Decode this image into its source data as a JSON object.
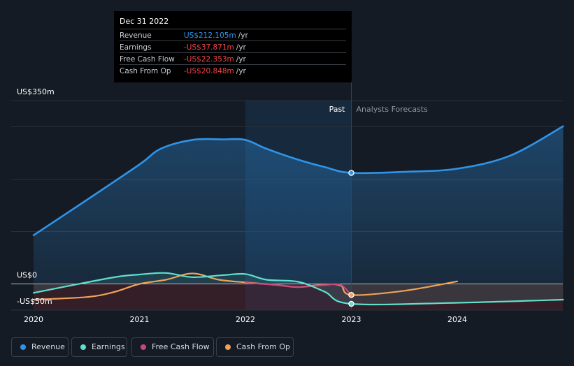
{
  "tooltip": {
    "date": "Dec 31 2022",
    "rows": [
      {
        "label": "Revenue",
        "value": "US$212.105m",
        "unit": "/yr",
        "color": "#2f94e8"
      },
      {
        "label": "Earnings",
        "value": "-US$37.871m",
        "unit": "/yr",
        "color": "#f0454b"
      },
      {
        "label": "Free Cash Flow",
        "value": "-US$22.353m",
        "unit": "/yr",
        "color": "#f0454b"
      },
      {
        "label": "Cash From Op",
        "value": "-US$20.848m",
        "unit": "/yr",
        "color": "#f0454b"
      }
    ]
  },
  "region_labels": {
    "past": "Past",
    "forecast": "Analysts Forecasts"
  },
  "legend": [
    {
      "label": "Revenue",
      "color": "#2f94e8"
    },
    {
      "label": "Earnings",
      "color": "#5fe0cc"
    },
    {
      "label": "Free Cash Flow",
      "color": "#c8477a"
    },
    {
      "label": "Cash From Op",
      "color": "#eea25a"
    }
  ],
  "chart_data": {
    "type": "line",
    "y_tick_labels": [
      "US$350m",
      "US$0",
      "-US$50m"
    ],
    "x_tick_labels": [
      "2020",
      "2021",
      "2022",
      "2023",
      "2024"
    ],
    "ylim": [
      -50,
      350
    ],
    "xlim": [
      2019.8,
      2025.0
    ],
    "past_end": 2023.0,
    "highlight_start": 2022.0,
    "grid": true,
    "series": [
      {
        "name": "Revenue",
        "color": "#2f94e8",
        "x": [
          2020.0,
          2020.5,
          2021.0,
          2021.2,
          2021.5,
          2021.8,
          2022.0,
          2022.2,
          2022.5,
          2022.75,
          2023.0,
          2023.5,
          2024.0,
          2024.5,
          2025.0
        ],
        "y": [
          93,
          160,
          228,
          258,
          275,
          276,
          275,
          258,
          237,
          223,
          212,
          214,
          220,
          245,
          301
        ]
      },
      {
        "name": "Earnings",
        "color": "#5fe0cc",
        "x": [
          2020.0,
          2020.5,
          2020.8,
          2021.0,
          2021.25,
          2021.5,
          2021.8,
          2022.0,
          2022.2,
          2022.5,
          2022.75,
          2023.0,
          2024.0,
          2025.0
        ],
        "y": [
          -17,
          3,
          14,
          18,
          21,
          13,
          17,
          19,
          8,
          4,
          -15,
          -38,
          -36,
          -30
        ]
      },
      {
        "name": "Free Cash Flow",
        "color": "#c8477a",
        "x": [
          2022.0,
          2022.3,
          2022.5,
          2022.75,
          2022.9,
          2023.0
        ],
        "y": [
          2,
          -2,
          -6,
          -2,
          -2,
          -22
        ]
      },
      {
        "name": "Cash From Op",
        "color": "#eea25a",
        "x": [
          2020.0,
          2020.5,
          2020.75,
          2021.0,
          2021.25,
          2021.5,
          2021.75,
          2022.0,
          2022.3,
          2022.5,
          2022.75,
          2022.9,
          2023.0,
          2023.5,
          2024.0
        ],
        "y": [
          -30,
          -25,
          -16,
          0,
          8,
          20,
          8,
          3,
          -2,
          -6,
          -1,
          -3,
          -21,
          -13,
          5
        ]
      }
    ]
  }
}
